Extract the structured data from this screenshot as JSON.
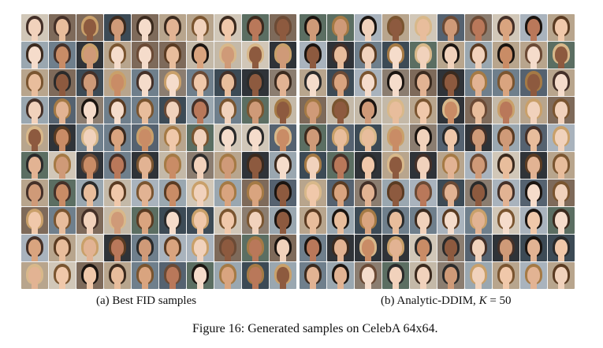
{
  "figure": {
    "caption": "Figure 16: Generated samples on CelebA 64x64."
  },
  "panels": [
    {
      "id": "a",
      "caption": "(a) Best FID samples",
      "image_desc": "grid of generated face samples",
      "rows": 10,
      "cols": 10
    },
    {
      "id": "b",
      "caption_prefix": "(b) Analytic-DDIM, ",
      "caption_var": "K",
      "caption_suffix": " = 50",
      "image_desc": "grid of generated face samples",
      "rows": 10,
      "cols": 10
    }
  ]
}
